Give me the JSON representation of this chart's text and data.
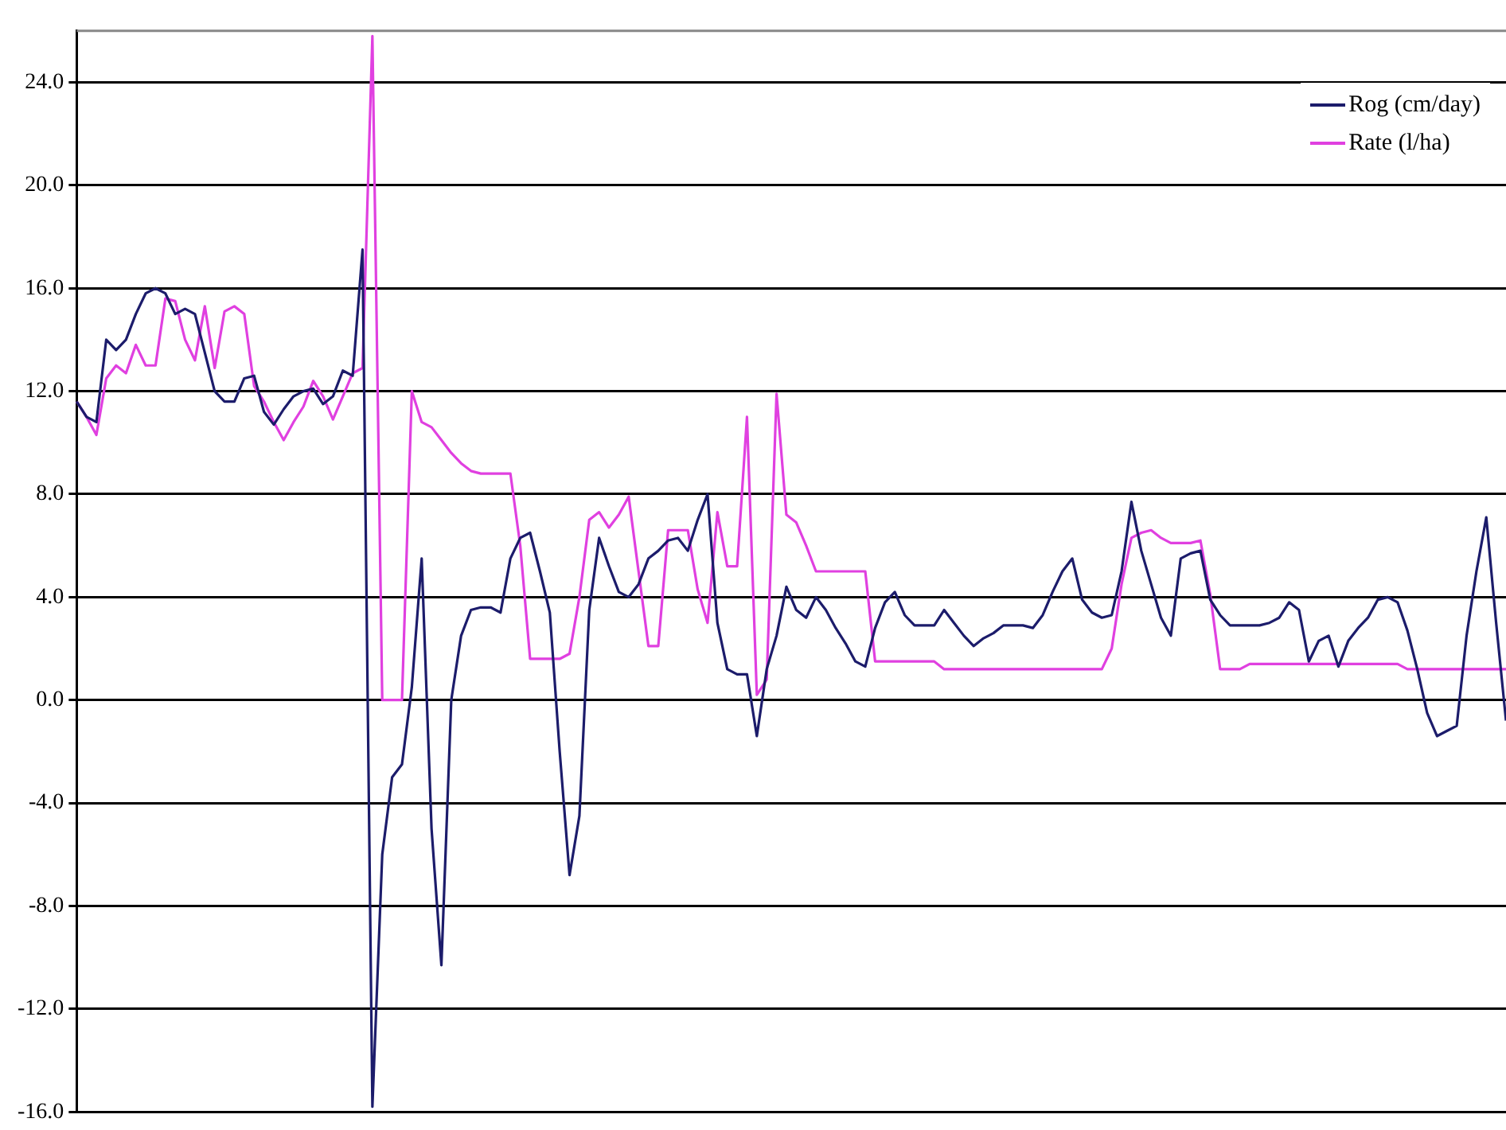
{
  "chart_data": {
    "type": "line",
    "categories": [
      null,
      null,
      null,
      null,
      null,
      null,
      null,
      null,
      null,
      null,
      null,
      null,
      null,
      null,
      null,
      null,
      null,
      null,
      null,
      null,
      null,
      null,
      null,
      null,
      null,
      null,
      null,
      null,
      null,
      null,
      null,
      null,
      null,
      null,
      null,
      null,
      null,
      null,
      null,
      null,
      null,
      null,
      null,
      null,
      null,
      null,
      null,
      null,
      null,
      null,
      null,
      null,
      null,
      null,
      null,
      null,
      null,
      null,
      null,
      null,
      null,
      null,
      null,
      null,
      null,
      null,
      null,
      null,
      null,
      null,
      null,
      null,
      null,
      null,
      null,
      null,
      null,
      null,
      null,
      null,
      null,
      null,
      null,
      null,
      null,
      null,
      null,
      null,
      null,
      null,
      null,
      null,
      null,
      null,
      null,
      null,
      null,
      null,
      null,
      null,
      null,
      null,
      null,
      null,
      null,
      null,
      null,
      null,
      null,
      null,
      null,
      null,
      null,
      null,
      null,
      null,
      null,
      null,
      null,
      null,
      null,
      null,
      null,
      null,
      null,
      null,
      null,
      null,
      null,
      null,
      null,
      null,
      null,
      null,
      null,
      null,
      null,
      null,
      null,
      null,
      null,
      null,
      null,
      null,
      null,
      null
    ],
    "series": [
      {
        "name": "Rog (cm/day)",
        "color": "#1c1c6b",
        "values": [
          11.6,
          11.0,
          10.8,
          14.0,
          13.6,
          14.0,
          15.0,
          15.8,
          16.0,
          15.8,
          15.0,
          15.2,
          15.0,
          13.5,
          12.0,
          11.6,
          11.6,
          12.5,
          12.6,
          11.2,
          10.7,
          11.3,
          11.8,
          12.0,
          12.1,
          11.5,
          11.8,
          12.8,
          12.6,
          17.5,
          -15.8,
          -6.0,
          -3.0,
          -2.5,
          0.5,
          5.5,
          -5.0,
          -10.3,
          0.0,
          2.5,
          3.5,
          3.6,
          3.6,
          3.4,
          5.5,
          6.3,
          6.5,
          5.0,
          3.4,
          -2.0,
          -6.8,
          -4.5,
          3.5,
          6.3,
          5.2,
          4.2,
          4.0,
          4.5,
          5.5,
          5.8,
          6.2,
          6.3,
          5.8,
          7.0,
          8.0,
          3.0,
          1.2,
          1.0,
          1.0,
          -1.4,
          1.2,
          2.5,
          4.4,
          3.5,
          3.2,
          4.0,
          3.5,
          2.8,
          2.2,
          1.5,
          1.3,
          2.8,
          3.8,
          4.2,
          3.3,
          2.9,
          2.9,
          2.9,
          3.5,
          3.0,
          2.5,
          2.1,
          2.4,
          2.6,
          2.9,
          2.9,
          2.9,
          2.8,
          3.3,
          4.2,
          5.0,
          5.5,
          3.9,
          3.4,
          3.2,
          3.3,
          5.0,
          7.7,
          5.8,
          4.5,
          3.2,
          2.5,
          5.5,
          5.7,
          5.8,
          3.9,
          3.3,
          2.9,
          2.9,
          2.9,
          2.9,
          3.0,
          3.2,
          3.8,
          3.5,
          1.5,
          2.3,
          2.5,
          1.3,
          2.3,
          2.8,
          3.2,
          3.9,
          4.0,
          3.8,
          2.7,
          1.2,
          -0.5,
          -1.4,
          -1.2,
          -1.0,
          2.5,
          5.0,
          7.1,
          3.0,
          -0.8
        ]
      },
      {
        "name": "Rate (l/ha)",
        "color": "#e040e0",
        "values": [
          11.6,
          11.0,
          10.3,
          12.5,
          13.0,
          12.7,
          13.8,
          13.0,
          13.0,
          15.6,
          15.5,
          14.0,
          13.2,
          15.3,
          12.9,
          15.1,
          15.3,
          15.0,
          12.2,
          11.6,
          10.8,
          10.1,
          10.8,
          11.4,
          12.4,
          11.8,
          10.9,
          11.8,
          12.7,
          12.9,
          25.8,
          0.0,
          0.0,
          0.0,
          12.0,
          10.8,
          10.6,
          10.1,
          9.6,
          9.2,
          8.9,
          8.8,
          8.8,
          8.8,
          8.8,
          6.0,
          1.6,
          1.6,
          1.6,
          1.6,
          1.8,
          4.0,
          7.0,
          7.3,
          6.7,
          7.2,
          7.9,
          5.0,
          2.1,
          2.1,
          6.6,
          6.6,
          6.6,
          4.3,
          3.0,
          7.3,
          5.2,
          5.2,
          11.0,
          0.2,
          0.8,
          11.9,
          7.2,
          6.9,
          6.0,
          5.0,
          5.0,
          5.0,
          5.0,
          5.0,
          5.0,
          1.5,
          1.5,
          1.5,
          1.5,
          1.5,
          1.5,
          1.5,
          1.2,
          1.2,
          1.2,
          1.2,
          1.2,
          1.2,
          1.2,
          1.2,
          1.2,
          1.2,
          1.2,
          1.2,
          1.2,
          1.2,
          1.2,
          1.2,
          1.2,
          2.0,
          4.5,
          6.3,
          6.5,
          6.6,
          6.3,
          6.1,
          6.1,
          6.1,
          6.2,
          4.1,
          1.2,
          1.2,
          1.2,
          1.4,
          1.4,
          1.4,
          1.4,
          1.4,
          1.4,
          1.4,
          1.4,
          1.4,
          1.4,
          1.4,
          1.4,
          1.4,
          1.4,
          1.4,
          1.4,
          1.2,
          1.2,
          1.2,
          1.2,
          1.2,
          1.2,
          1.2,
          1.2,
          1.2,
          1.2,
          1.2
        ]
      }
    ],
    "ylim": [
      -16,
      26
    ],
    "yticks": [
      {
        "value": -16,
        "label": "-16.0"
      },
      {
        "value": -12,
        "label": "-12.0"
      },
      {
        "value": -8,
        "label": "-8.0"
      },
      {
        "value": -4,
        "label": "-4.0"
      },
      {
        "value": 0,
        "label": "0.0"
      },
      {
        "value": 4,
        "label": "4.0"
      },
      {
        "value": 8,
        "label": "8.0"
      },
      {
        "value": 12,
        "label": "12.0"
      },
      {
        "value": 16,
        "label": "16.0"
      },
      {
        "value": 20,
        "label": "20.0"
      },
      {
        "value": 24,
        "label": "24.0"
      }
    ],
    "grid": "y",
    "legend": "top right",
    "marker": "none",
    "line_style": "solid"
  }
}
